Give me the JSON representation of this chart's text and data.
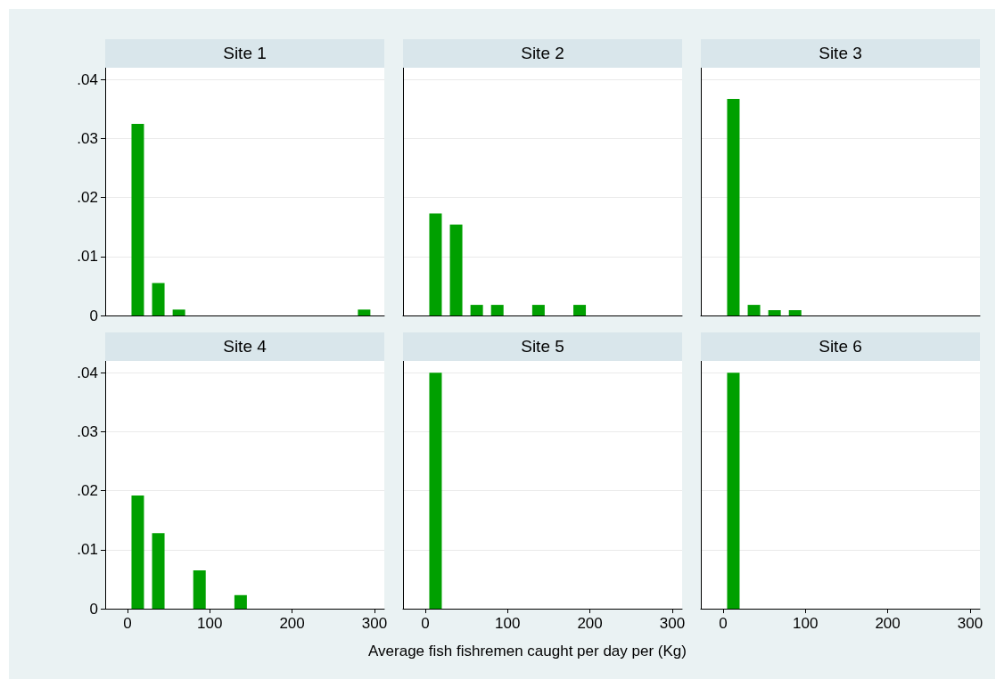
{
  "chart_data": [
    {
      "type": "bar",
      "title": "Site 1",
      "x": [
        12.5,
        37.5,
        62.5,
        287.5
      ],
      "values": [
        0.0325,
        0.0055,
        0.001,
        0.001
      ],
      "color": "#00a000",
      "xlim": [
        -27,
        312
      ],
      "xticks": [
        0,
        100,
        200,
        300
      ],
      "ylim": [
        0,
        0.042
      ],
      "yticks": [
        {
          "value": 0,
          "label": "0"
        },
        {
          "value": 0.01,
          "label": ".01"
        },
        {
          "value": 0.02,
          "label": ".02"
        },
        {
          "value": 0.03,
          "label": ".03"
        },
        {
          "value": 0.04,
          "label": ".04"
        }
      ],
      "grid": "y",
      "tick_labels": "y"
    },
    {
      "type": "bar",
      "title": "Site 2",
      "x": [
        12.5,
        37.5,
        62.5,
        87.5,
        137.5,
        187.5
      ],
      "values": [
        0.0173,
        0.0154,
        0.0018,
        0.0018,
        0.0018,
        0.0018
      ],
      "color": "#00a000",
      "xlim": [
        -27,
        312
      ],
      "xticks": [
        0,
        100,
        200,
        300
      ],
      "ylim": [
        0,
        0.042
      ],
      "yticks": [
        0,
        0.01,
        0.02,
        0.03,
        0.04
      ],
      "grid": "y",
      "tick_labels": false
    },
    {
      "type": "bar",
      "title": "Site 3",
      "x": [
        12.5,
        37.5,
        62.5,
        87.5
      ],
      "values": [
        0.0367,
        0.0018,
        0.0009,
        0.0009
      ],
      "color": "#00a000",
      "xlim": [
        -27,
        312
      ],
      "xticks": [
        0,
        100,
        200,
        300
      ],
      "ylim": [
        0,
        0.042
      ],
      "yticks": [
        0,
        0.01,
        0.02,
        0.03,
        0.04
      ],
      "grid": "y",
      "tick_labels": false
    },
    {
      "type": "bar",
      "title": "Site 4",
      "x": [
        12.5,
        37.5,
        87.5,
        137.5
      ],
      "values": [
        0.0192,
        0.0128,
        0.0065,
        0.0023
      ],
      "color": "#00a000",
      "xlim": [
        -27,
        312
      ],
      "xticks": [
        0,
        100,
        200,
        300
      ],
      "ylim": [
        0,
        0.042
      ],
      "yticks": [
        {
          "value": 0,
          "label": "0"
        },
        {
          "value": 0.01,
          "label": ".01"
        },
        {
          "value": 0.02,
          "label": ".02"
        },
        {
          "value": 0.03,
          "label": ".03"
        },
        {
          "value": 0.04,
          "label": ".04"
        }
      ],
      "grid": "y"
    },
    {
      "type": "bar",
      "title": "Site 5",
      "xlabel": "Average fish fishremen caught per day per (Kg)",
      "x": [
        12.5
      ],
      "values": [
        0.04
      ],
      "color": "#00a000",
      "xlim": [
        -27,
        312
      ],
      "xticks": [
        0,
        100,
        200,
        300
      ],
      "ylim": [
        0,
        0.042
      ],
      "yticks": [
        0,
        0.01,
        0.02,
        0.03,
        0.04
      ],
      "grid": "y",
      "tick_labels": "x"
    },
    {
      "type": "bar",
      "title": "Site 6",
      "x": [
        12.5
      ],
      "values": [
        0.04
      ],
      "color": "#00a000",
      "xlim": [
        -27,
        312
      ],
      "xticks": [
        0,
        100,
        200,
        300
      ],
      "ylim": [
        0,
        0.042
      ],
      "yticks": [
        0,
        0.01,
        0.02,
        0.03,
        0.04
      ],
      "grid": "y",
      "tick_labels": "x"
    }
  ]
}
